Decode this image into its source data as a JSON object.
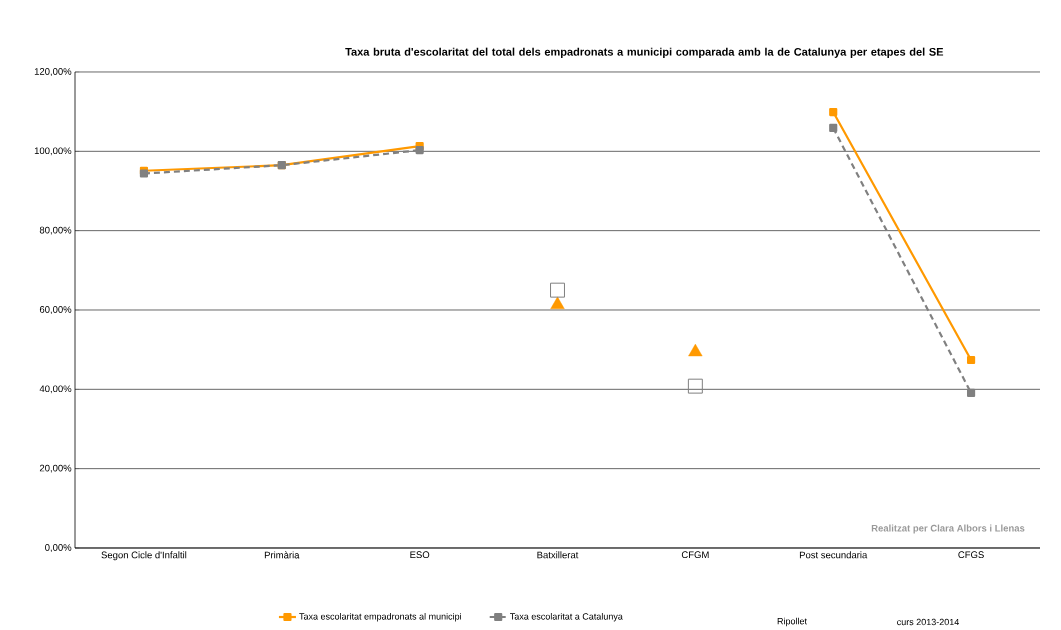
{
  "chart_data": {
    "type": "line",
    "title": "Taxa bruta d'escolaritat del total dels empadronats a municipi  comparada amb la de Catalunya per etapes del SE",
    "categories": [
      "Segon Cicle d'Infaltil",
      "Primària",
      "ESO",
      "Batxillerat",
      "CFGM",
      "Post secundaria",
      "CFGS"
    ],
    "series": [
      {
        "name": "Taxa escolaritat empadronats al municipi",
        "color": "#ff9900",
        "marker": "square",
        "line_style": "solid",
        "values": [
          95.1,
          96.5,
          101.3,
          null,
          null,
          109.9,
          47.4
        ]
      },
      {
        "name": "Taxa escolaritat a Catalunya",
        "color": "#808080",
        "marker": "square",
        "line_style": "dashed",
        "values": [
          94.4,
          96.5,
          100.3,
          null,
          null,
          105.9,
          39.1
        ]
      },
      {
        "type": "scatter",
        "color": "#ff9900",
        "marker": "triangle",
        "values": [
          null,
          null,
          null,
          61.3,
          49.4,
          null,
          null
        ]
      },
      {
        "type": "scatter",
        "color": "#808080",
        "marker": "square",
        "values": [
          null,
          null,
          null,
          65.0,
          40.8,
          null,
          null
        ]
      }
    ],
    "ylim": [
      0,
      120
    ],
    "yticks": [
      {
        "value": 0,
        "label": "0,00%"
      },
      {
        "value": 20,
        "label": "20,00%"
      },
      {
        "value": 40,
        "label": "40,00%"
      },
      {
        "value": 60,
        "label": "60,00%"
      },
      {
        "value": 80,
        "label": "80,00%"
      },
      {
        "value": 100,
        "label": "100,00%"
      },
      {
        "value": 120,
        "label": "120,00%"
      }
    ],
    "grid": "y",
    "legend": "bottom",
    "annotations": [
      "Ripollet",
      "curs 2013-2014",
      "Realitzat per Clara Albors i Llenas"
    ]
  }
}
